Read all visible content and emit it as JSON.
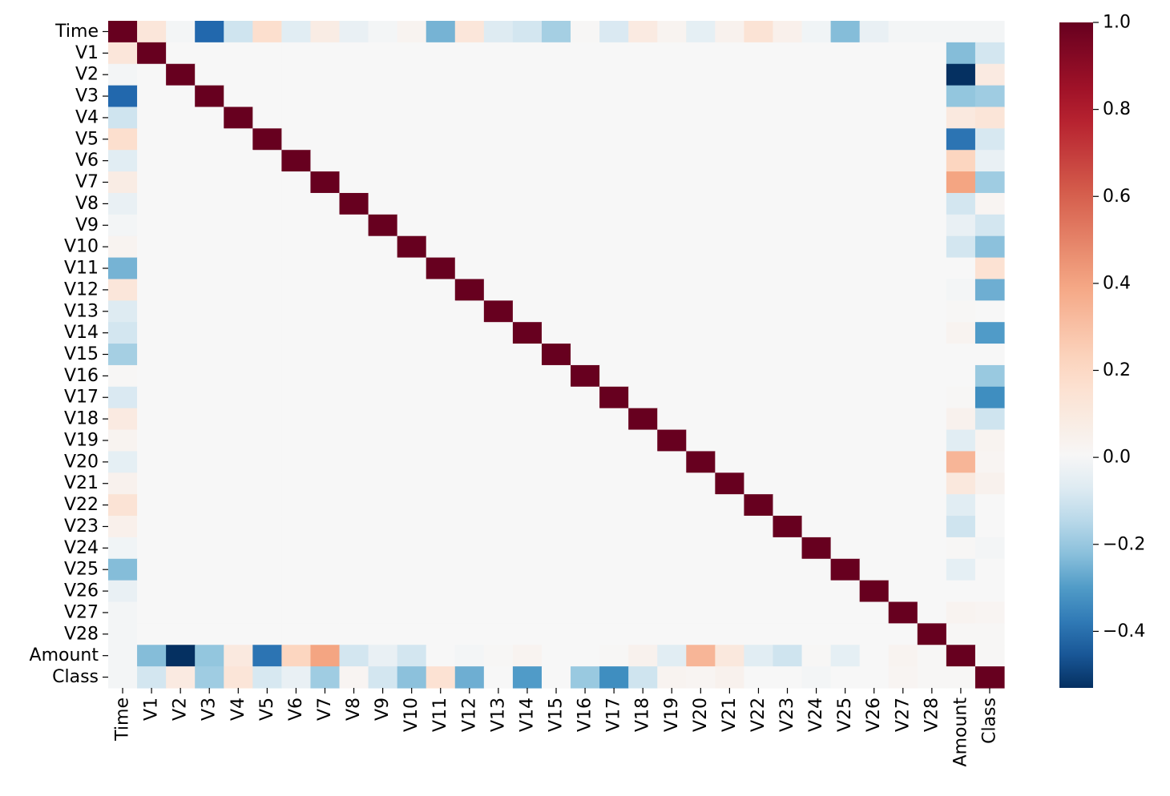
{
  "chart_data": {
    "type": "heatmap",
    "title": "",
    "xlabel": "",
    "ylabel": "",
    "labels": [
      "Time",
      "V1",
      "V2",
      "V3",
      "V4",
      "V5",
      "V6",
      "V7",
      "V8",
      "V9",
      "V10",
      "V11",
      "V12",
      "V13",
      "V14",
      "V15",
      "V16",
      "V17",
      "V18",
      "V19",
      "V20",
      "V21",
      "V22",
      "V23",
      "V24",
      "V25",
      "V26",
      "V27",
      "V28",
      "Amount",
      "Class"
    ],
    "time_row": [
      1.0,
      0.12,
      -0.01,
      -0.42,
      -0.11,
      0.17,
      -0.06,
      0.08,
      -0.04,
      -0.01,
      0.03,
      -0.25,
      0.12,
      -0.07,
      -0.1,
      -0.18,
      0.01,
      -0.08,
      0.09,
      0.03,
      -0.05,
      0.04,
      0.14,
      0.05,
      -0.02,
      -0.23,
      -0.04,
      -0.01,
      -0.01,
      -0.01,
      -0.01
    ],
    "amount_row": [
      -0.01,
      -0.23,
      -0.53,
      -0.21,
      0.1,
      -0.39,
      0.22,
      0.4,
      -0.1,
      -0.04,
      -0.1,
      0.0,
      -0.01,
      0.01,
      0.03,
      -0.0,
      -0.0,
      0.01,
      0.04,
      -0.06,
      0.34,
      0.11,
      -0.06,
      -0.11,
      0.01,
      -0.05,
      -0.0,
      0.03,
      0.01,
      1.0,
      0.01
    ],
    "class_row": [
      -0.01,
      -0.1,
      0.09,
      -0.19,
      0.13,
      -0.09,
      -0.04,
      -0.19,
      0.02,
      -0.1,
      -0.22,
      0.15,
      -0.26,
      -0.0,
      -0.3,
      -0.0,
      -0.2,
      -0.33,
      -0.11,
      0.03,
      0.02,
      0.04,
      0.0,
      -0.0,
      -0.01,
      0.0,
      0.0,
      0.02,
      0.01,
      0.01,
      1.0
    ],
    "colorbar": {
      "colormap": "RdBu_r",
      "vmin": -0.53,
      "vmax": 1.0,
      "ticks": [
        1.0,
        0.8,
        0.6,
        0.4,
        0.2,
        0.0,
        -0.2,
        -0.4
      ],
      "tick_labels": [
        "1.0",
        "0.8",
        "0.6",
        "0.4",
        "0.2",
        "0.0",
        "−0.2",
        "−0.4"
      ]
    }
  }
}
